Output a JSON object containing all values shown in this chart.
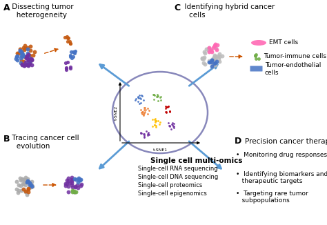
{
  "bg_color": "#ffffff",
  "section_A_title_bold": "A",
  "section_A_title_normal": " Dissecting tumor\n   heterogeneity",
  "section_B_title_bold": "B",
  "section_B_title_normal": " Tracing cancer cell\n   evolution",
  "section_C_title_bold": "C",
  "section_C_title_normal": "  Identifying hybrid cancer\n    cells",
  "section_D_title_bold": "D",
  "section_D_subtitle": "Precision cancer therapy",
  "center_title": "Single cell multi-omics",
  "center_items": [
    "Single-cell RNA sequencing",
    "Single-cell DNA sequencing",
    "Single-cell proteomics",
    "Single-cell epigenomics"
  ],
  "section_D_items": [
    "Monitoring drug responses",
    "Identifying biomarkers and\n   therapeutic targets",
    "Targeting rare tumor\n   subpopulations"
  ],
  "section_C_items": [
    "EMT cells",
    "Tumor-immune cells",
    "Tumor-endothelial\ncells"
  ],
  "arrow_color": "#5b9bd5",
  "dashed_arrow_color": "#cc5500",
  "tsne_axis_label1": "t-SNE1",
  "tsne_axis_label2": "t-SNE2",
  "cluster_colors_tsne": [
    "#4472c4",
    "#70ad47",
    "#ed7d31",
    "#c00000",
    "#ffc000",
    "#7030a0",
    "#7030a0"
  ],
  "emt_color": "#ff69b4",
  "immune_color": "#70ad47",
  "endothelial_color": "#4472c4"
}
